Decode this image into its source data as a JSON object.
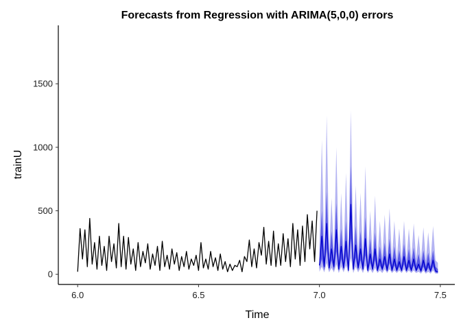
{
  "chart_data": {
    "type": "line",
    "title": "Forecasts from Regression with ARIMA(5,0,0) errors",
    "xlabel": "Time",
    "ylabel": "trainU",
    "xlim": [
      5.92,
      7.56
    ],
    "ylim": [
      -80,
      1960
    ],
    "x_ticks": [
      6.0,
      6.5,
      7.0,
      7.5
    ],
    "x_tick_labels": [
      "6.0",
      "6.5",
      "7.0",
      "7.5"
    ],
    "y_ticks": [
      0,
      500,
      1000,
      1500
    ],
    "y_tick_labels": [
      "0",
      "500",
      "1000",
      "1500"
    ],
    "grid": false,
    "legend": "none",
    "colors": {
      "observed": "#000000",
      "forecast_mean": "#0000cc",
      "pi80": "#5a5ae6",
      "pi95": "#b4b4f2"
    },
    "series": [
      {
        "role": "observed",
        "x": [
          6.0,
          6.01,
          6.02,
          6.03,
          6.04,
          6.05,
          6.06,
          6.07,
          6.08,
          6.09,
          6.1,
          6.11,
          6.12,
          6.13,
          6.14,
          6.15,
          6.16,
          6.17,
          6.18,
          6.19,
          6.2,
          6.21,
          6.22,
          6.23,
          6.24,
          6.25,
          6.26,
          6.27,
          6.28,
          6.29,
          6.3,
          6.31,
          6.32,
          6.33,
          6.34,
          6.35,
          6.36,
          6.37,
          6.38,
          6.39,
          6.4,
          6.41,
          6.42,
          6.43,
          6.44,
          6.45,
          6.46,
          6.47,
          6.48,
          6.49,
          6.5,
          6.51,
          6.52,
          6.53,
          6.54,
          6.55,
          6.56,
          6.57,
          6.58,
          6.59,
          6.6,
          6.61,
          6.62,
          6.63,
          6.64,
          6.65,
          6.66,
          6.67,
          6.68,
          6.69,
          6.7,
          6.71,
          6.72,
          6.73,
          6.74,
          6.75,
          6.76,
          6.77,
          6.78,
          6.79,
          6.8,
          6.81,
          6.82,
          6.83,
          6.84,
          6.85,
          6.86,
          6.87,
          6.88,
          6.89,
          6.9,
          6.91,
          6.92,
          6.93,
          6.94,
          6.95,
          6.96,
          6.97,
          6.98,
          6.99
        ],
        "y": [
          20,
          360,
          120,
          350,
          60,
          440,
          80,
          250,
          40,
          300,
          70,
          220,
          30,
          300,
          100,
          240,
          50,
          400,
          60,
          300,
          40,
          290,
          80,
          200,
          30,
          250,
          60,
          180,
          90,
          240,
          40,
          160,
          70,
          220,
          30,
          260,
          60,
          150,
          40,
          200,
          80,
          170,
          30,
          140,
          60,
          180,
          40,
          120,
          70,
          150,
          30,
          250,
          50,
          120,
          40,
          180,
          60,
          130,
          30,
          160,
          40,
          100,
          20,
          80,
          30,
          70,
          60,
          110,
          20,
          140,
          100,
          270,
          60,
          200,
          50,
          250,
          150,
          370,
          80,
          260,
          70,
          340,
          60,
          240,
          70,
          320,
          100,
          280,
          60,
          400,
          120,
          350,
          70,
          380,
          100,
          470,
          200,
          420,
          100,
          500
        ]
      },
      {
        "role": "forecast_mean",
        "x": [
          7.0,
          7.01,
          7.02,
          7.03,
          7.04,
          7.05,
          7.06,
          7.07,
          7.08,
          7.09,
          7.1,
          7.11,
          7.12,
          7.13,
          7.14,
          7.15,
          7.16,
          7.17,
          7.18,
          7.19,
          7.2,
          7.21,
          7.22,
          7.23,
          7.24,
          7.25,
          7.26,
          7.27,
          7.28,
          7.29,
          7.3,
          7.31,
          7.32,
          7.33,
          7.34,
          7.35,
          7.36,
          7.37,
          7.38,
          7.39,
          7.4,
          7.41,
          7.42,
          7.43,
          7.44,
          7.45,
          7.46,
          7.47,
          7.48,
          7.49
        ],
        "y": [
          70,
          300,
          60,
          400,
          50,
          200,
          60,
          350,
          40,
          220,
          50,
          260,
          30,
          550,
          40,
          230,
          50,
          200,
          40,
          280,
          30,
          160,
          40,
          200,
          30,
          120,
          40,
          140,
          30,
          160,
          30,
          120,
          30,
          100,
          30,
          140,
          30,
          110,
          30,
          120,
          30,
          80,
          25,
          110,
          25,
          90,
          25,
          110,
          25,
          20
        ]
      },
      {
        "role": "pi80",
        "x": [
          7.0,
          7.01,
          7.02,
          7.03,
          7.04,
          7.05,
          7.06,
          7.07,
          7.08,
          7.09,
          7.1,
          7.11,
          7.12,
          7.13,
          7.14,
          7.15,
          7.16,
          7.17,
          7.18,
          7.19,
          7.2,
          7.21,
          7.22,
          7.23,
          7.24,
          7.25,
          7.26,
          7.27,
          7.28,
          7.29,
          7.3,
          7.31,
          7.32,
          7.33,
          7.34,
          7.35,
          7.36,
          7.37,
          7.38,
          7.39,
          7.4,
          7.41,
          7.42,
          7.43,
          7.44,
          7.45,
          7.46,
          7.47,
          7.48,
          7.49
        ],
        "lower": [
          40,
          120,
          30,
          200,
          30,
          110,
          30,
          180,
          25,
          120,
          30,
          140,
          20,
          280,
          25,
          130,
          30,
          110,
          25,
          150,
          20,
          90,
          25,
          110,
          20,
          70,
          25,
          80,
          20,
          90,
          20,
          70,
          20,
          60,
          20,
          80,
          20,
          60,
          20,
          70,
          20,
          50,
          15,
          60,
          15,
          50,
          15,
          60,
          15,
          10
        ],
        "upper": [
          110,
          500,
          100,
          650,
          90,
          340,
          100,
          560,
          80,
          360,
          90,
          420,
          70,
          850,
          80,
          380,
          90,
          340,
          80,
          450,
          70,
          280,
          80,
          330,
          70,
          220,
          80,
          250,
          70,
          280,
          70,
          220,
          70,
          190,
          70,
          240,
          70,
          200,
          70,
          210,
          70,
          160,
          60,
          190,
          60,
          170,
          60,
          190,
          60,
          40
        ]
      },
      {
        "role": "pi95",
        "x": [
          7.0,
          7.01,
          7.02,
          7.03,
          7.04,
          7.05,
          7.06,
          7.07,
          7.08,
          7.09,
          7.1,
          7.11,
          7.12,
          7.13,
          7.14,
          7.15,
          7.16,
          7.17,
          7.18,
          7.19,
          7.2,
          7.21,
          7.22,
          7.23,
          7.24,
          7.25,
          7.26,
          7.27,
          7.28,
          7.29,
          7.3,
          7.31,
          7.32,
          7.33,
          7.34,
          7.35,
          7.36,
          7.37,
          7.38,
          7.39,
          7.4,
          7.41,
          7.42,
          7.43,
          7.44,
          7.45,
          7.46,
          7.47,
          7.48,
          7.49
        ],
        "lower": [
          20,
          60,
          15,
          90,
          15,
          50,
          15,
          80,
          10,
          60,
          15,
          70,
          10,
          130,
          10,
          60,
          15,
          50,
          10,
          70,
          10,
          40,
          10,
          50,
          10,
          30,
          10,
          40,
          10,
          40,
          10,
          30,
          10,
          30,
          10,
          40,
          10,
          30,
          10,
          30,
          10,
          20,
          5,
          30,
          5,
          20,
          5,
          30,
          5,
          5
        ],
        "upper": [
          200,
          1060,
          180,
          1250,
          160,
          600,
          170,
          1000,
          140,
          640,
          150,
          800,
          120,
          1290,
          130,
          700,
          150,
          640,
          130,
          850,
          120,
          500,
          130,
          620,
          120,
          420,
          130,
          470,
          120,
          520,
          120,
          420,
          120,
          360,
          120,
          420,
          120,
          360,
          120,
          400,
          120,
          310,
          110,
          370,
          110,
          330,
          110,
          380,
          110,
          90
        ]
      }
    ]
  }
}
